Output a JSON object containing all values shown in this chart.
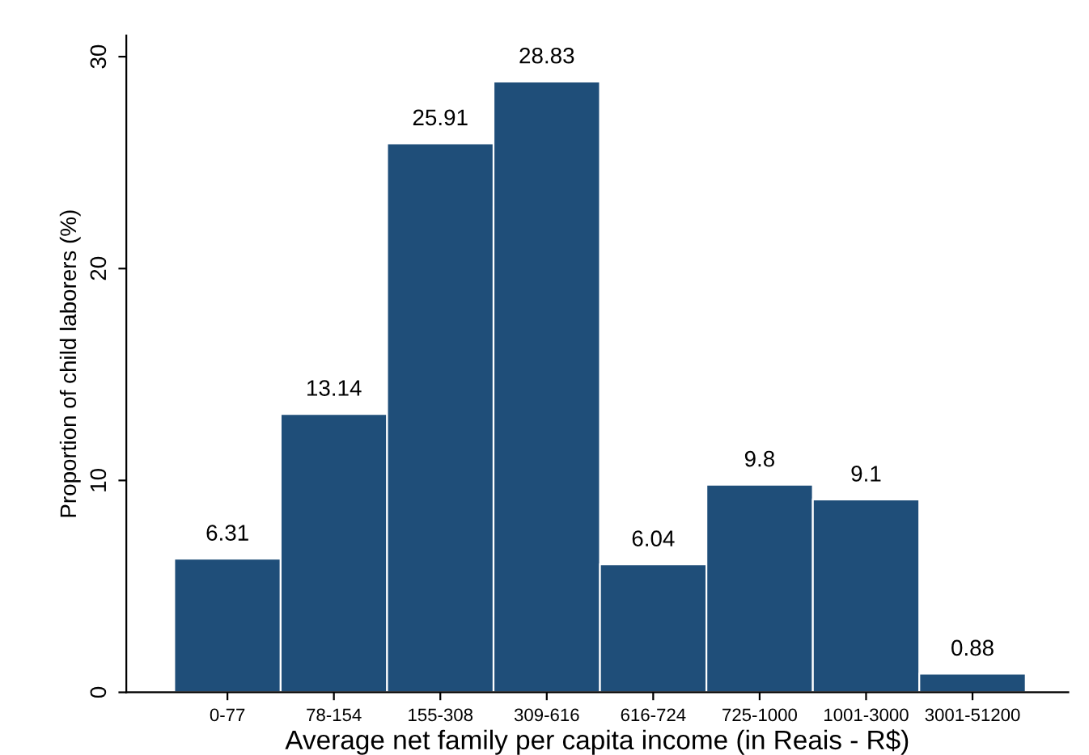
{
  "chart_data": {
    "type": "bar",
    "categories": [
      "0-77",
      "78-154",
      "155-308",
      "309-616",
      "616-724",
      "725-1000",
      "1001-3000",
      "3001-51200"
    ],
    "values": [
      6.31,
      13.14,
      25.91,
      28.83,
      6.04,
      9.8,
      9.1,
      0.88
    ],
    "color": "#1f4e79",
    "xlabel": "Average net family per capita income (in Reais - R$)",
    "ylabel": "Proportion of child laborers (%)",
    "ylim": [
      0,
      31
    ],
    "yticks": [
      0,
      10,
      20,
      30
    ],
    "data_labels": true,
    "grid": false,
    "legend": false
  }
}
